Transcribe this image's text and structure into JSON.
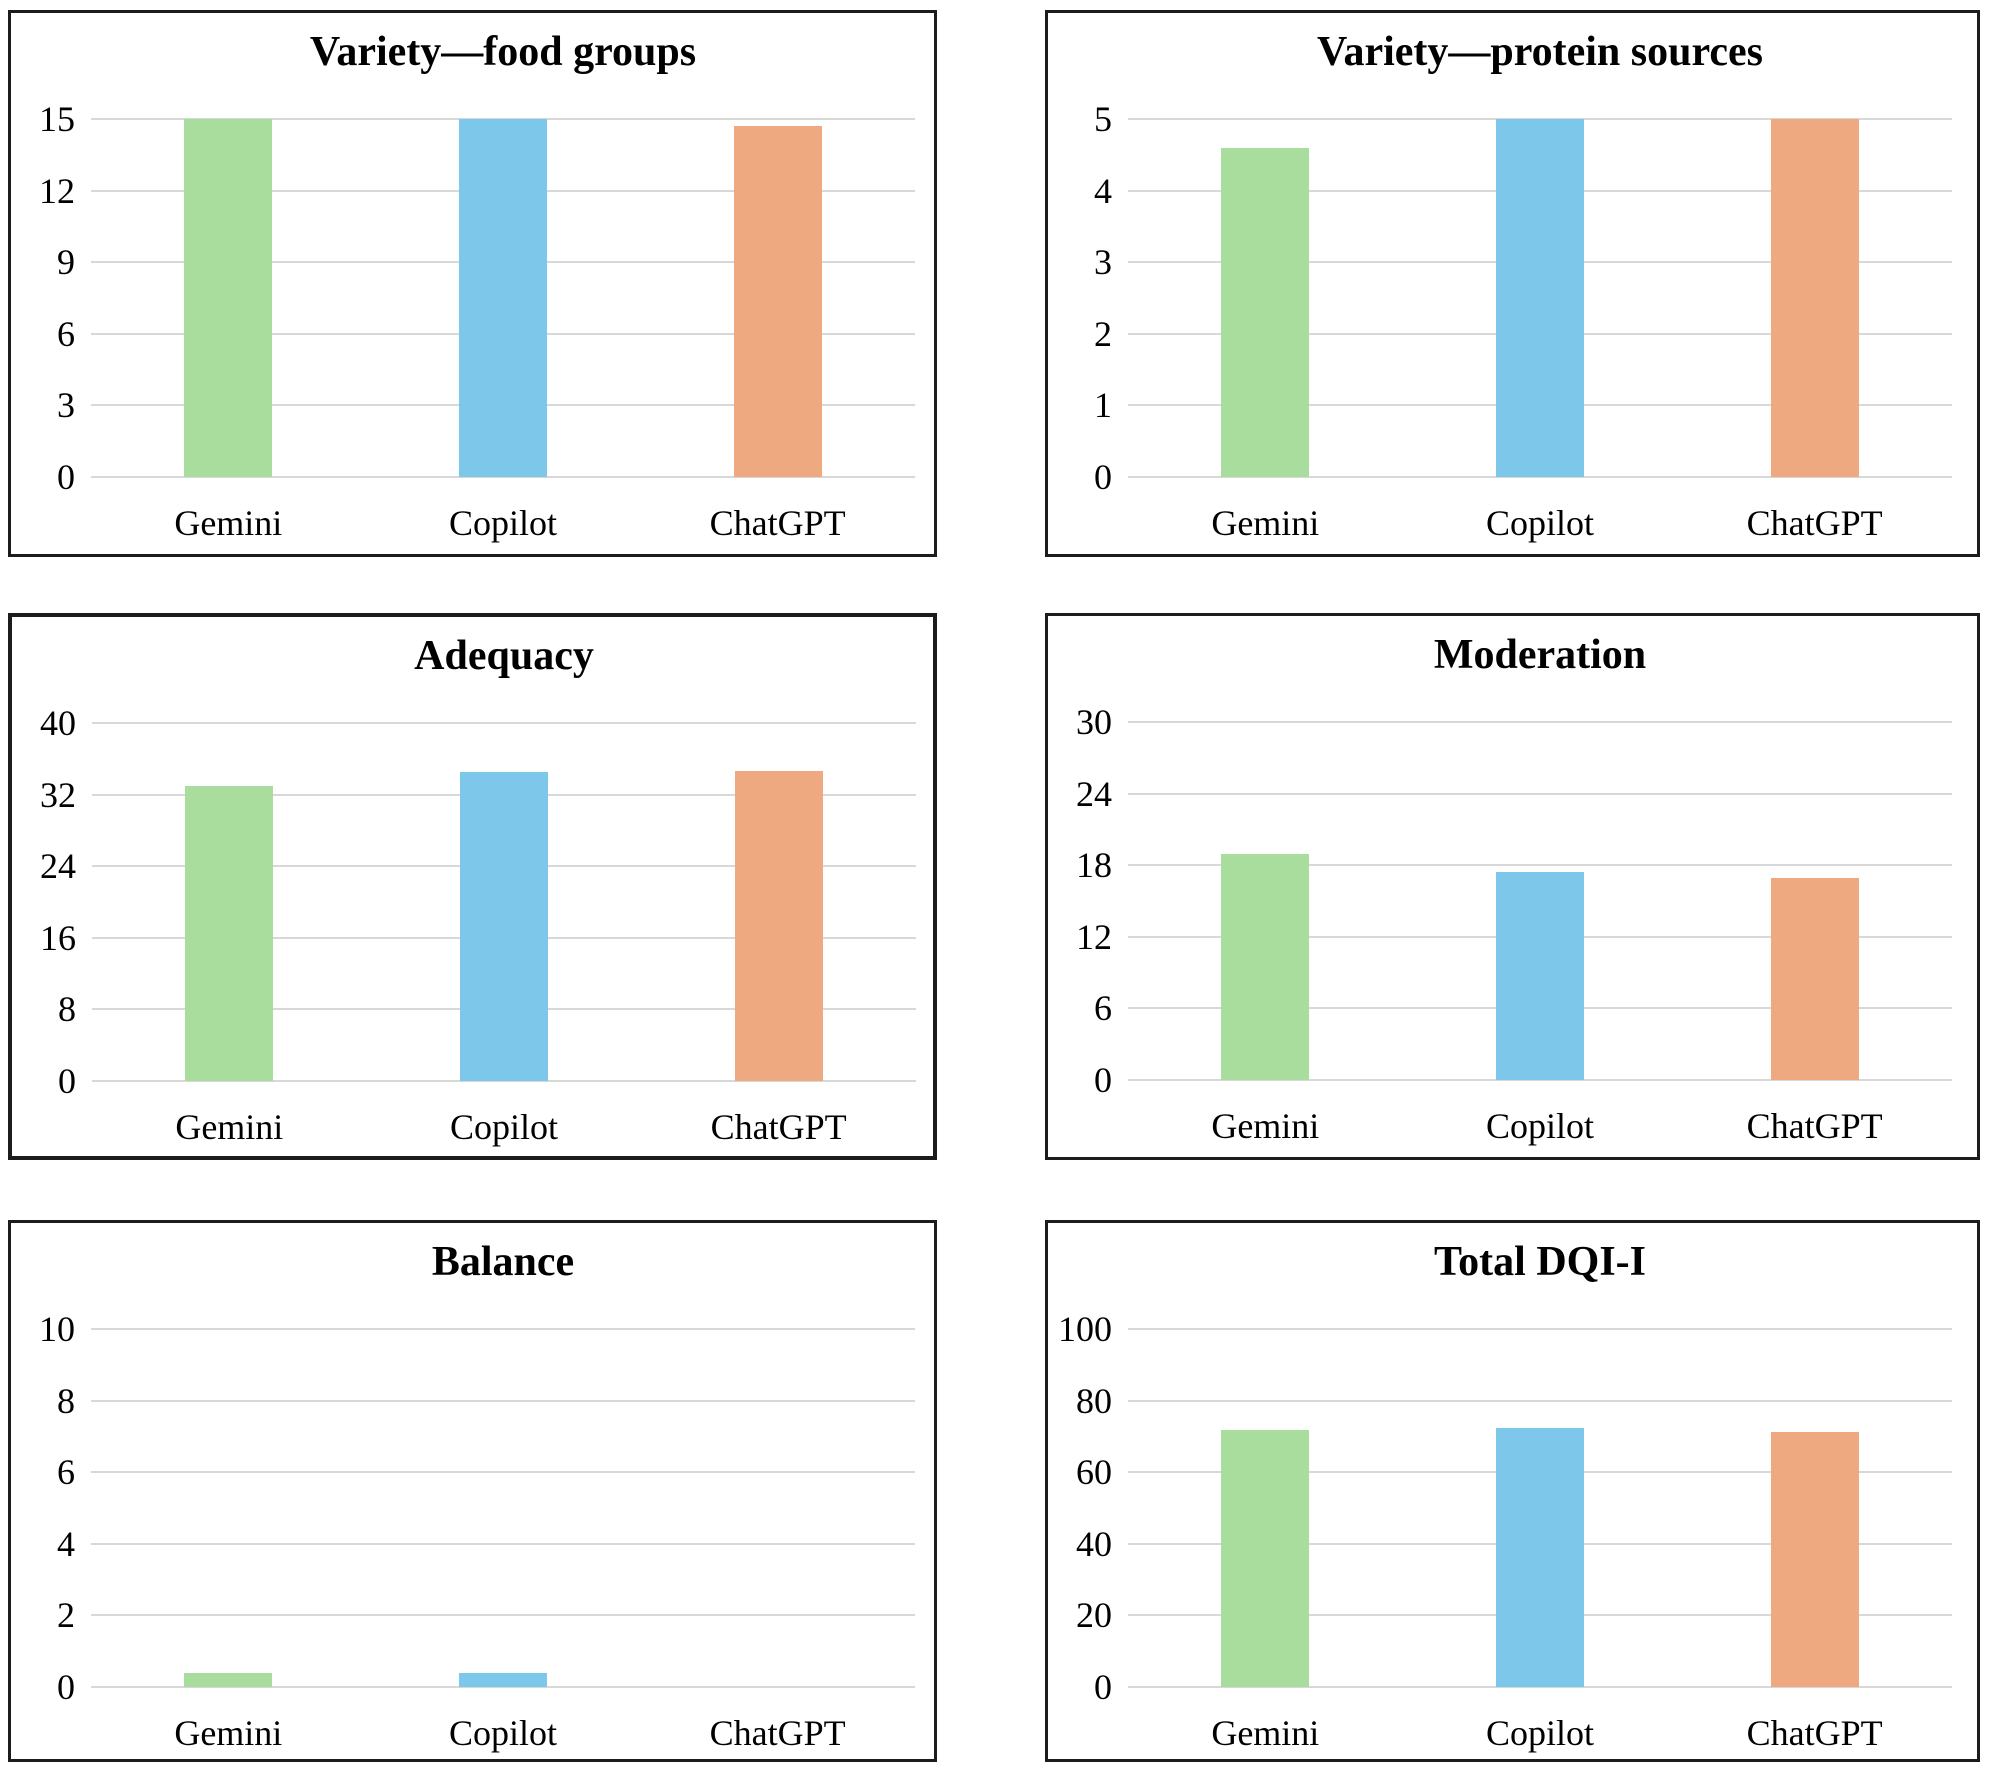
{
  "figure": {
    "background": "#ffffff",
    "panel_border_color": "#1c1c1c",
    "gridline_color": "#d8d8d8",
    "text_color": "#000000"
  },
  "palette": {
    "gemini": "#a9dd9e",
    "copilot": "#7cc7ea",
    "chatgpt": "#efa981"
  },
  "chart_data": [
    {
      "type": "bar",
      "title": "Variety—food groups",
      "categories": [
        "Gemini",
        "Copilot",
        "ChatGPT"
      ],
      "values": [
        15,
        15,
        14.7
      ],
      "series_colors": [
        "gemini",
        "copilot",
        "chatgpt"
      ],
      "xlabel": "",
      "ylabel": "",
      "ylim": [
        0,
        15
      ],
      "yticks": [
        0,
        3,
        6,
        9,
        12,
        15
      ],
      "grid": true,
      "legend": "none"
    },
    {
      "type": "bar",
      "title": "Variety—protein sources",
      "categories": [
        "Gemini",
        "Copilot",
        "ChatGPT"
      ],
      "values": [
        4.6,
        5,
        5
      ],
      "series_colors": [
        "gemini",
        "copilot",
        "chatgpt"
      ],
      "xlabel": "",
      "ylabel": "",
      "ylim": [
        0,
        5
      ],
      "yticks": [
        0,
        1,
        2,
        3,
        4,
        5
      ],
      "grid": true,
      "legend": "none"
    },
    {
      "type": "bar",
      "title": "Adequacy",
      "categories": [
        "Gemini",
        "Copilot",
        "ChatGPT"
      ],
      "values": [
        33,
        34.5,
        34.6
      ],
      "series_colors": [
        "gemini",
        "copilot",
        "chatgpt"
      ],
      "xlabel": "",
      "ylabel": "",
      "ylim": [
        0,
        40
      ],
      "yticks": [
        0,
        8,
        16,
        24,
        32,
        40
      ],
      "grid": true,
      "legend": "none"
    },
    {
      "type": "bar",
      "title": "Moderation",
      "categories": [
        "Gemini",
        "Copilot",
        "ChatGPT"
      ],
      "values": [
        18.9,
        17.4,
        16.9
      ],
      "series_colors": [
        "gemini",
        "copilot",
        "chatgpt"
      ],
      "xlabel": "",
      "ylabel": "",
      "ylim": [
        0,
        30
      ],
      "yticks": [
        0,
        6,
        12,
        18,
        24,
        30
      ],
      "grid": true,
      "legend": "none"
    },
    {
      "type": "bar",
      "title": "Balance",
      "categories": [
        "Gemini",
        "Copilot",
        "ChatGPT"
      ],
      "values": [
        0.4,
        0.4,
        0
      ],
      "series_colors": [
        "gemini",
        "copilot",
        "chatgpt"
      ],
      "xlabel": "",
      "ylabel": "",
      "ylim": [
        0,
        10
      ],
      "yticks": [
        0,
        2,
        4,
        6,
        8,
        10
      ],
      "grid": true,
      "legend": "none"
    },
    {
      "type": "bar",
      "title": "Total DQI-I",
      "categories": [
        "Gemini",
        "Copilot",
        "ChatGPT"
      ],
      "values": [
        71.9,
        72.3,
        71.2
      ],
      "series_colors": [
        "gemini",
        "copilot",
        "chatgpt"
      ],
      "xlabel": "",
      "ylabel": "",
      "ylim": [
        0,
        100
      ],
      "yticks": [
        0,
        20,
        40,
        60,
        80,
        100
      ],
      "grid": true,
      "legend": "none"
    }
  ]
}
